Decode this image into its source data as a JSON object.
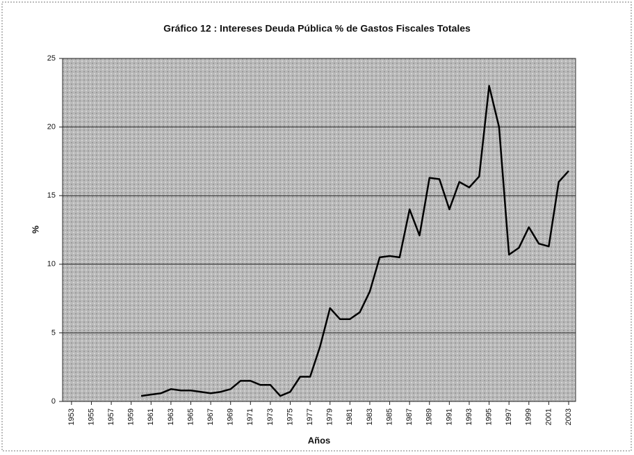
{
  "chart_data": {
    "type": "line",
    "title": "Gráfico 12 : Intereses Deuda Pública % de Gastos Fiscales Totales",
    "ylabel": "%",
    "xlabel": "Años",
    "x": [
      1953,
      1954,
      1955,
      1956,
      1957,
      1958,
      1959,
      1960,
      1961,
      1962,
      1963,
      1964,
      1965,
      1966,
      1967,
      1968,
      1969,
      1970,
      1971,
      1972,
      1973,
      1974,
      1975,
      1976,
      1977,
      1978,
      1979,
      1980,
      1981,
      1982,
      1983,
      1984,
      1985,
      1986,
      1987,
      1988,
      1989,
      1990,
      1991,
      1992,
      1993,
      1994,
      1995,
      1996,
      1997,
      1998,
      1999,
      2000,
      2001,
      2002,
      2003
    ],
    "values": [
      null,
      null,
      null,
      null,
      null,
      null,
      null,
      0.4,
      0.5,
      0.6,
      0.9,
      0.8,
      0.8,
      0.7,
      0.6,
      0.7,
      0.9,
      1.5,
      1.5,
      1.2,
      1.2,
      0.4,
      0.7,
      1.8,
      1.8,
      4.0,
      6.8,
      6.0,
      6.0,
      6.5,
      8.0,
      10.5,
      10.6,
      10.5,
      14.0,
      12.1,
      16.3,
      16.2,
      14.0,
      16.0,
      15.6,
      16.4,
      23.0,
      20.0,
      10.7,
      11.2,
      12.7,
      11.5,
      11.3,
      16.0,
      16.8
    ],
    "color": "#000000",
    "xlim": [
      1952.1,
      2003.7
    ],
    "xticks": [
      1953,
      1955,
      1957,
      1959,
      1961,
      1963,
      1965,
      1967,
      1969,
      1971,
      1973,
      1975,
      1977,
      1979,
      1981,
      1983,
      1985,
      1987,
      1989,
      1991,
      1993,
      1995,
      1997,
      1999,
      2001,
      2003
    ],
    "ylim": [
      0,
      25
    ],
    "yticks": [
      0,
      5,
      10,
      15,
      20,
      25
    ],
    "grid": true
  }
}
